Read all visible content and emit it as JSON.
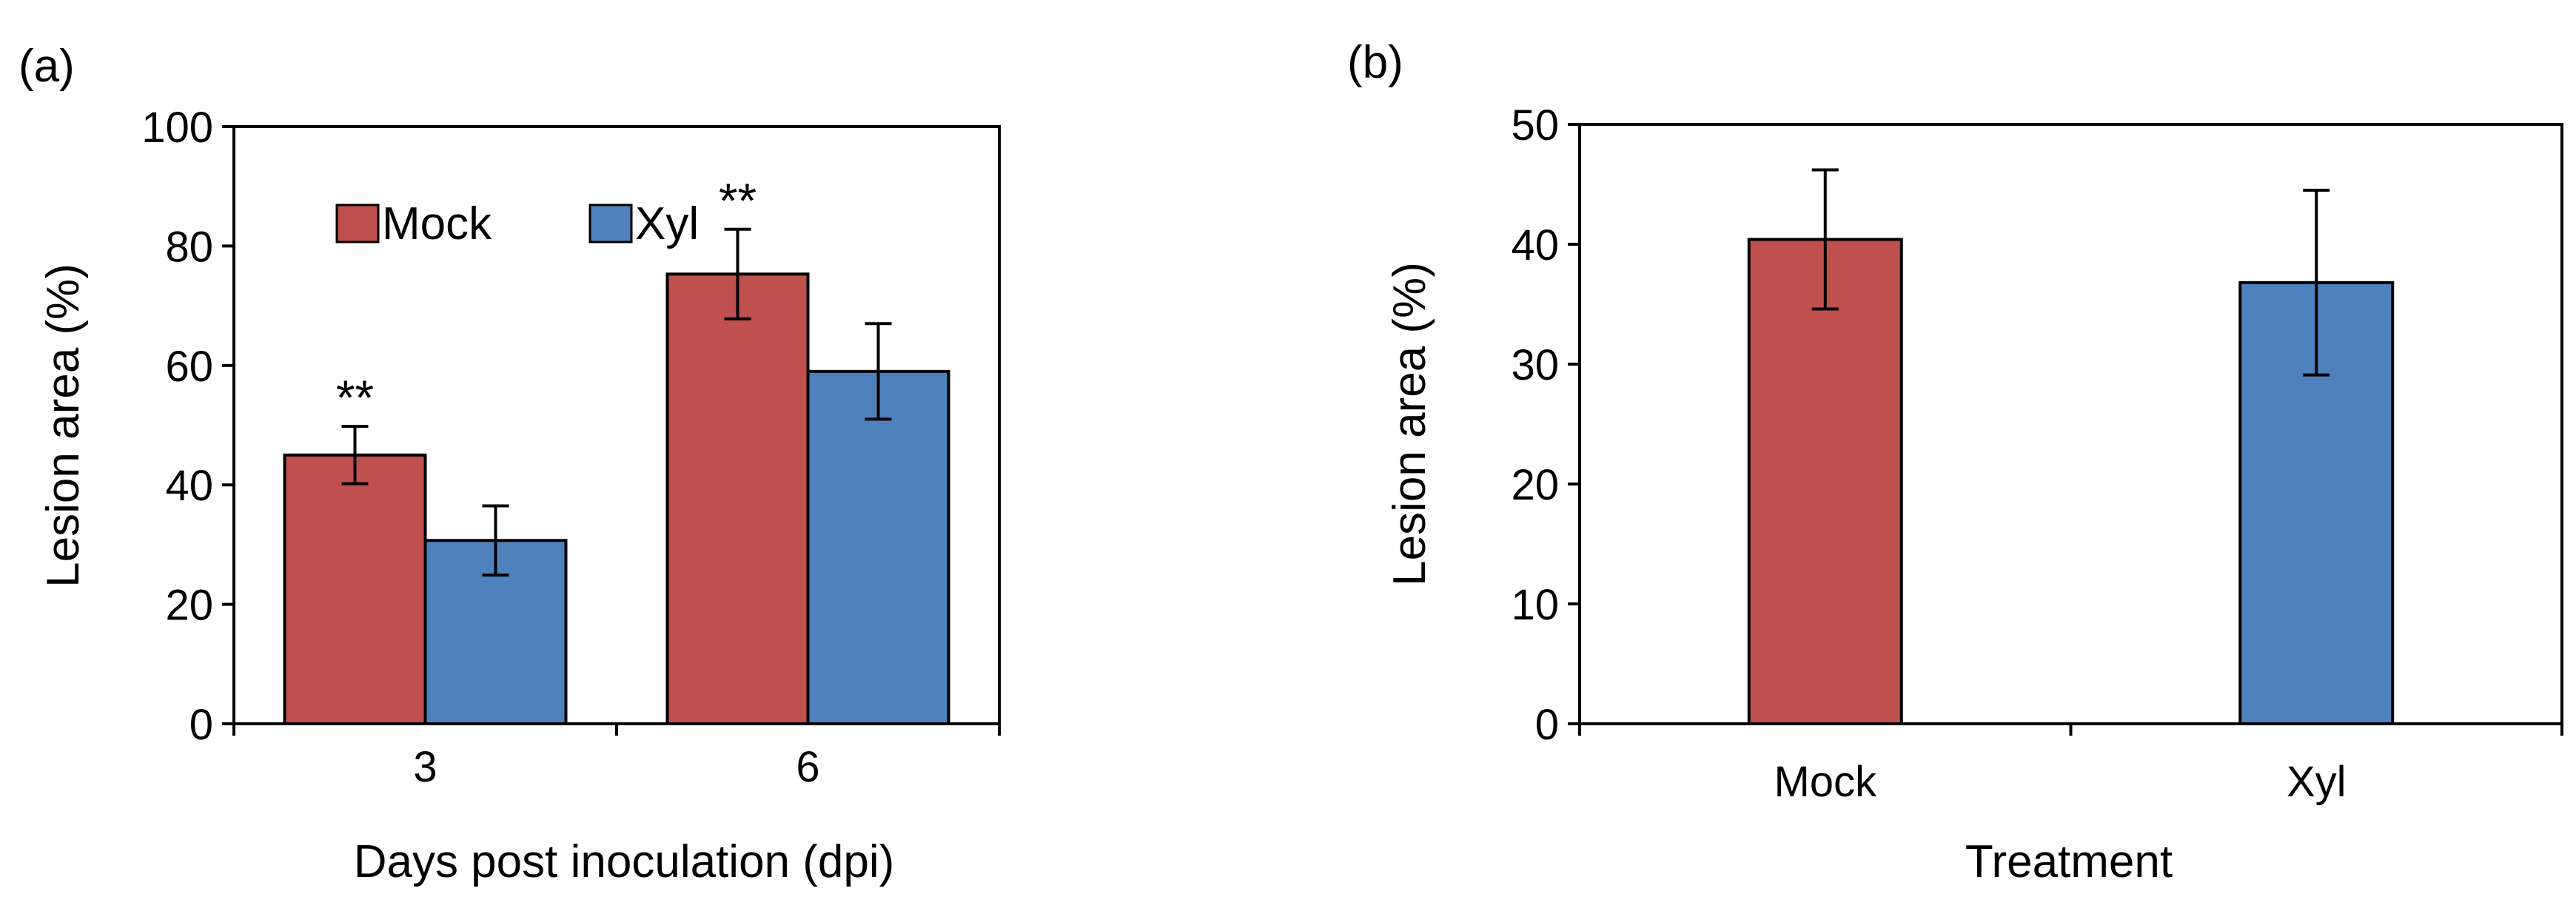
{
  "colors": {
    "mock": "#C0504D",
    "xyl": "#4F81BD",
    "axis": "#000000",
    "background": "#ffffff"
  },
  "chart_data": [
    {
      "panel_label": "(a)",
      "type": "bar",
      "categories": [
        "3",
        "6"
      ],
      "series": [
        {
          "name": "Mock",
          "values": [
            45,
            75.3
          ],
          "errors": [
            4.8,
            7.5
          ]
        },
        {
          "name": "Xyl",
          "values": [
            30.7,
            59
          ],
          "errors": [
            5.8,
            8
          ]
        }
      ],
      "significance": [
        "**",
        "**"
      ],
      "legend": [
        "Mock",
        "Xyl"
      ],
      "legend_position": "top-left",
      "title": "",
      "xlabel": "Days post inoculation (dpi)",
      "ylabel": "Lesion area (%)",
      "ylim": [
        0,
        100
      ],
      "yticks": [
        0,
        20,
        40,
        60,
        80,
        100
      ],
      "grid": false
    },
    {
      "panel_label": "(b)",
      "type": "bar",
      "categories": [
        "Mock",
        "Xyl"
      ],
      "series": [
        {
          "name": "Lesion area",
          "values": [
            40.4,
            36.8
          ],
          "errors": [
            5.8,
            7.7
          ]
        }
      ],
      "title": "",
      "xlabel": "Treatment",
      "ylabel": "Lesion area (%)",
      "ylim": [
        0,
        50
      ],
      "yticks": [
        0,
        10,
        20,
        30,
        40,
        50
      ],
      "grid": false
    }
  ]
}
